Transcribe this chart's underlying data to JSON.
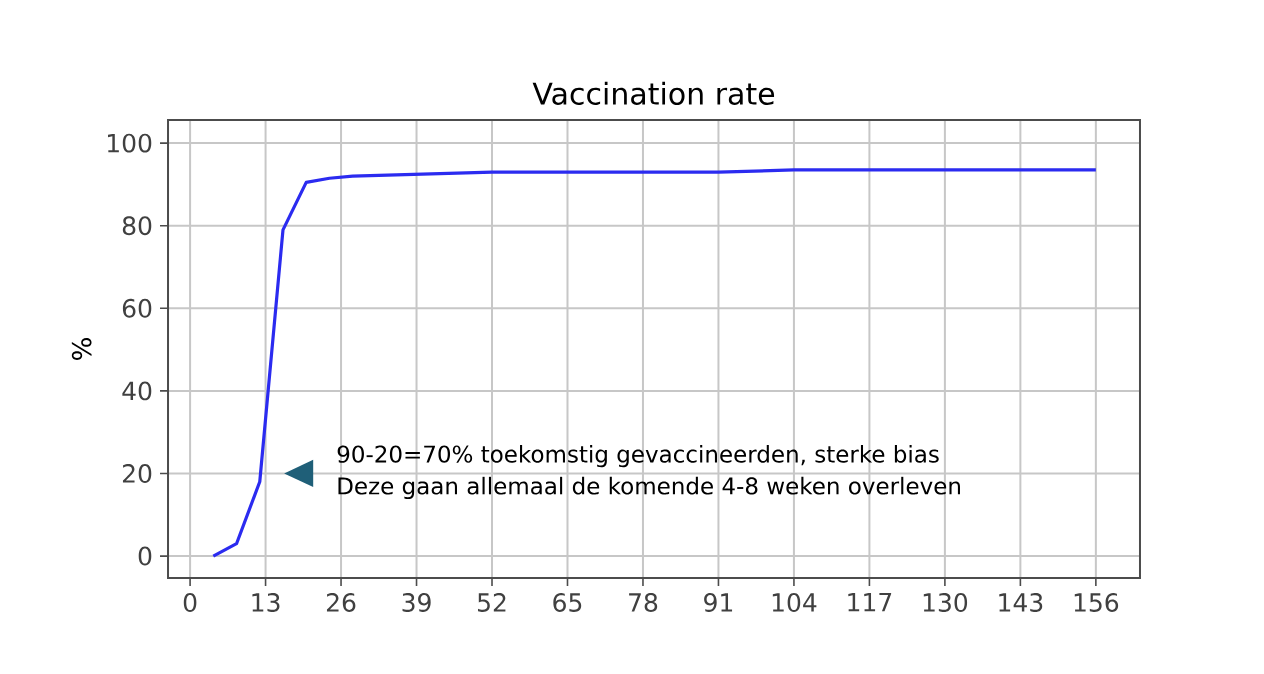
{
  "chart_data": {
    "type": "line",
    "title": "Vaccination rate",
    "ylabel": "%",
    "x": [
      4,
      8,
      12,
      16,
      20,
      24,
      28,
      52,
      91,
      104,
      156
    ],
    "series": [
      {
        "color": "#2b2bf0",
        "values": [
          0,
          3,
          18,
          79,
          90.5,
          91.5,
          92,
          93,
          93,
          93.5,
          93.5
        ]
      }
    ],
    "xlim": [
      -3.8,
      163.6
    ],
    "ylim": [
      -5.3,
      105.6
    ],
    "xticks": [
      0,
      13,
      26,
      39,
      52,
      65,
      78,
      91,
      104,
      117,
      130,
      143,
      156
    ],
    "yticks": [
      0,
      20,
      40,
      60,
      80,
      100
    ],
    "grid": true,
    "marker": "none",
    "line_style": "solid",
    "annotations": [
      "90-20=70% toekomstig gevaccineerden, sterke bias",
      "Deze gaan allemaal de komende 4-8 weken overleven"
    ]
  }
}
